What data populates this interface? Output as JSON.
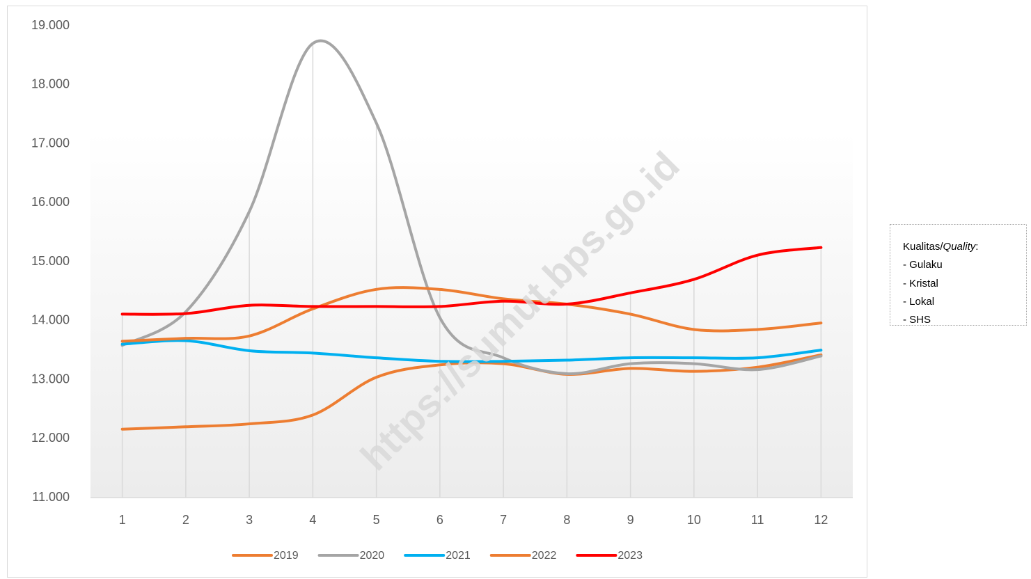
{
  "chart_data": {
    "type": "line",
    "categories": [
      "1",
      "2",
      "3",
      "4",
      "5",
      "6",
      "7",
      "8",
      "9",
      "10",
      "11",
      "12"
    ],
    "series": [
      {
        "name": "2019",
        "color": "#ED7D31",
        "values": [
          12160,
          12200,
          12250,
          12400,
          13040,
          13250,
          13270,
          13090,
          13190,
          13140,
          13210,
          13420
        ]
      },
      {
        "name": "2020",
        "color": "#A5A5A5",
        "values": [
          13580,
          14150,
          15850,
          18700,
          17350,
          14050,
          13370,
          13100,
          13270,
          13270,
          13170,
          13400
        ]
      },
      {
        "name": "2021",
        "color": "#00B0F0",
        "values": [
          13600,
          13660,
          13490,
          13450,
          13370,
          13310,
          13310,
          13330,
          13370,
          13370,
          13370,
          13500
        ]
      },
      {
        "name": "2022",
        "color": "#ED7D31",
        "values": [
          13650,
          13700,
          13740,
          14200,
          14530,
          14530,
          14370,
          14280,
          14110,
          13850,
          13850,
          13960
        ]
      },
      {
        "name": "2023",
        "color": "#FF0000",
        "values": [
          14110,
          14120,
          14260,
          14240,
          14240,
          14240,
          14330,
          14280,
          14470,
          14700,
          15110,
          15240
        ]
      }
    ],
    "ylim": [
      11000,
      19000
    ],
    "yticks": [
      {
        "value": 11000,
        "label": "11.000"
      },
      {
        "value": 12000,
        "label": "12.000"
      },
      {
        "value": 13000,
        "label": "13.000"
      },
      {
        "value": 14000,
        "label": "14.000"
      },
      {
        "value": 15000,
        "label": "15.000"
      },
      {
        "value": 16000,
        "label": "16.000"
      },
      {
        "value": 17000,
        "label": "17.000"
      },
      {
        "value": 18000,
        "label": "18.000"
      },
      {
        "value": 19000,
        "label": "19.000"
      }
    ],
    "smooth": true,
    "legend": "bottom",
    "watermark": "https://sumut.bps.go.id"
  },
  "note_box": {
    "title_prefix": "Kualitas/",
    "title_italic": "Quality",
    "title_suffix": ":",
    "items": [
      "- Gulaku",
      "- Kristal",
      "- Lokal",
      "- SHS"
    ]
  }
}
